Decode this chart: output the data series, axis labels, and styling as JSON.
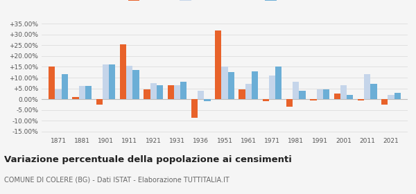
{
  "years": [
    1871,
    1881,
    1901,
    1911,
    1921,
    1931,
    1936,
    1951,
    1961,
    1971,
    1981,
    1991,
    2001,
    2011,
    2021
  ],
  "colere": [
    15.0,
    1.0,
    -2.5,
    25.5,
    4.5,
    6.5,
    -8.5,
    32.0,
    4.5,
    -1.0,
    -3.5,
    -0.5,
    2.5,
    -0.5,
    -2.5
  ],
  "provincia_bg": [
    4.5,
    6.0,
    16.0,
    15.5,
    7.5,
    6.5,
    4.0,
    15.0,
    7.0,
    11.0,
    8.0,
    4.5,
    6.5,
    11.5,
    2.0
  ],
  "lombardia": [
    11.5,
    6.0,
    16.0,
    13.5,
    6.5,
    8.0,
    -1.0,
    12.5,
    13.0,
    15.0,
    4.0,
    4.5,
    2.0,
    7.0,
    3.0
  ],
  "color_colere": "#e8622a",
  "color_provincia": "#c5d5ea",
  "color_lombardia": "#6baed6",
  "title": "Variazione percentuale della popolazione ai censimenti",
  "subtitle": "COMUNE DI COLERE (BG) - Dati ISTAT - Elaborazione TUTTITALIA.IT",
  "ylim": [
    -17,
    37
  ],
  "yticks": [
    -15,
    -10,
    -5,
    0,
    5,
    10,
    15,
    20,
    25,
    30,
    35
  ],
  "background_color": "#f5f5f5",
  "grid_color": "#e0e0e0"
}
